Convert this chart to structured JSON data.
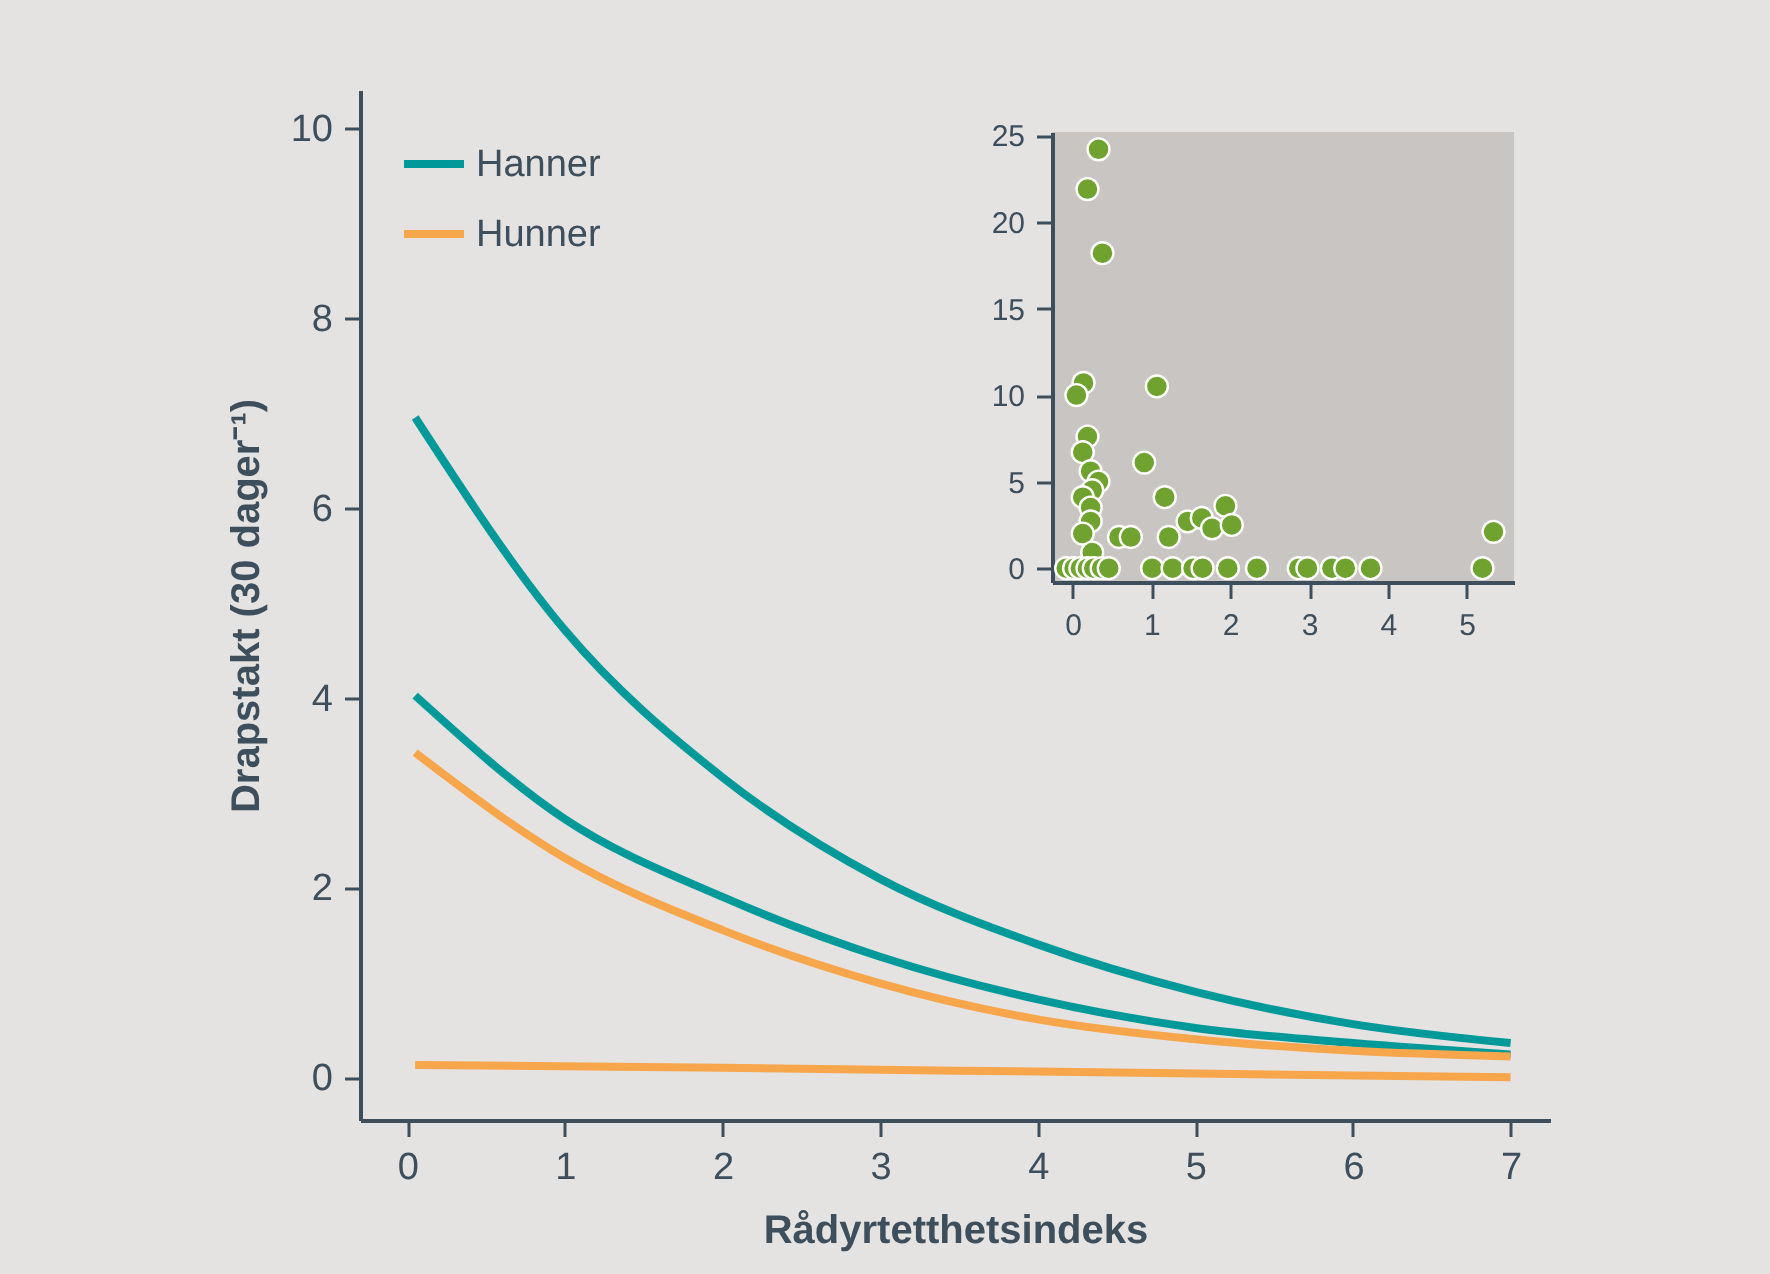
{
  "chart_data": [
    {
      "type": "line",
      "xlabel": "Rådyrtetthetsindeks",
      "ylabel": "Drapstakt (30 dager⁻¹)",
      "xlim": [
        -0.3,
        7.25
      ],
      "ylim": [
        -0.45,
        10.4
      ],
      "xticks": [
        0,
        1,
        2,
        3,
        4,
        5,
        6,
        7
      ],
      "yticks": [
        0,
        2,
        4,
        6,
        8,
        10
      ],
      "legend": "top left",
      "series": [
        {
          "name": "Hanner",
          "color": "#009999",
          "x": [
            0.05,
            1,
            2,
            3,
            4,
            5,
            6,
            7
          ],
          "values": [
            6.95,
            4.71,
            3.16,
            2.09,
            1.4,
            0.9,
            0.56,
            0.36
          ]
        },
        {
          "color": "#009999",
          "x": [
            0.05,
            1,
            2,
            3,
            4,
            5,
            6,
            7
          ],
          "values": [
            4.02,
            2.72,
            1.9,
            1.27,
            0.82,
            0.52,
            0.36,
            0.24
          ]
        },
        {
          "name": "Hunner",
          "color": "#f7a64c",
          "x": [
            0.05,
            1,
            2,
            3,
            4,
            5,
            6,
            7
          ],
          "values": [
            3.42,
            2.31,
            1.55,
            0.99,
            0.61,
            0.4,
            0.28,
            0.22
          ]
        },
        {
          "color": "#f7a64c",
          "x": [
            0.05,
            2,
            3.5,
            5,
            7
          ],
          "values": [
            0.13,
            0.1,
            0.07,
            0.04,
            0.0
          ]
        }
      ]
    },
    {
      "type": "scatter",
      "xlim": [
        -0.26,
        5.6
      ],
      "ylim": [
        -0.8,
        25.2
      ],
      "xticks": [
        0,
        1,
        2,
        3,
        4,
        5
      ],
      "yticks": [
        0,
        5,
        10,
        15,
        20,
        25
      ],
      "marker": "circle",
      "series": [
        {
          "color": "#6fa22e",
          "x": [
            0.33,
            0.19,
            0.38,
            0.14,
            0.05,
            1.07,
            0.19,
            0.13,
            0.23,
            0.33,
            0.25,
            0.13,
            0.23,
            0.23,
            0.13,
            0.25,
            0.91,
            1.17,
            1.22,
            0.59,
            0.74,
            1.46,
            1.64,
            1.77,
            1.94,
            2.02,
            5.34,
            -0.08,
            0.02,
            0.1,
            0.19,
            0.27,
            0.37,
            0.46,
            1.01,
            1.27,
            1.53,
            1.65,
            1.97,
            2.34,
            2.87,
            2.98,
            3.29,
            3.46,
            3.78,
            5.2
          ],
          "values": [
            24.2,
            21.9,
            18.2,
            10.7,
            10.0,
            10.5,
            7.6,
            6.7,
            5.6,
            5.0,
            4.5,
            4.1,
            3.5,
            2.7,
            2.0,
            0.9,
            6.1,
            4.1,
            1.8,
            1.8,
            1.8,
            2.7,
            2.9,
            2.3,
            3.6,
            2.5,
            2.1,
            0,
            0,
            0,
            0,
            0,
            0,
            0,
            0,
            0,
            0,
            0,
            0,
            0,
            0,
            0,
            0,
            0,
            0,
            0
          ]
        }
      ]
    }
  ]
}
